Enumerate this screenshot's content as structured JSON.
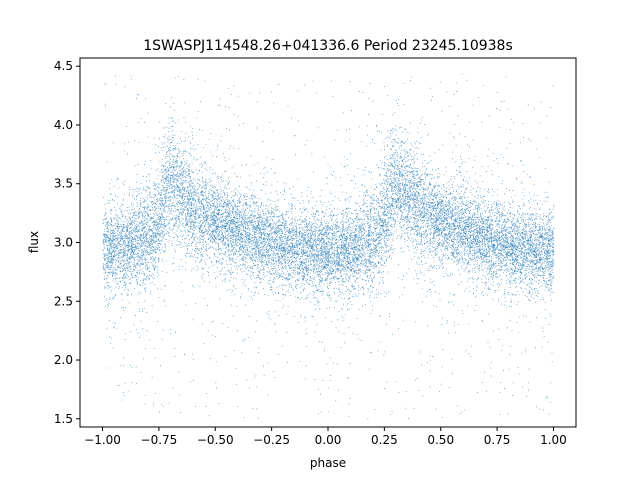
{
  "chart_data": {
    "type": "scatter",
    "title": "1SWASPJ114548.26+041336.6 Period 23245.10938s",
    "xlabel": "phase",
    "ylabel": "flux",
    "xlim": [
      -1.1,
      1.1
    ],
    "ylim": [
      1.43,
      4.57
    ],
    "x_ticks": [
      -1.0,
      -0.75,
      -0.5,
      -0.25,
      0.0,
      0.25,
      0.5,
      0.75,
      1.0
    ],
    "x_tick_labels": [
      "−1.00",
      "−0.75",
      "−0.50",
      "−0.25",
      "0.00",
      "0.25",
      "0.50",
      "0.75",
      "1.00"
    ],
    "y_ticks": [
      1.5,
      2.0,
      2.5,
      3.0,
      3.5,
      4.0,
      4.5
    ],
    "y_tick_labels": [
      "1.5",
      "2.0",
      "2.5",
      "3.0",
      "3.5",
      "4.0",
      "4.5"
    ],
    "grid": false,
    "marker_color": "#1f77b4",
    "series": [
      {
        "phase_range": [
          -1.0,
          1.0
        ],
        "n_points": 16000,
        "baseline_flux": 2.95,
        "peak_flux": 3.75,
        "peak_phase": [
          -0.7,
          0.3
        ],
        "flux_range": [
          1.5,
          4.45
        ],
        "x": [
          -1.0,
          -0.9,
          -0.8,
          -0.75,
          -0.7,
          -0.65,
          -0.6,
          -0.5,
          -0.4,
          -0.3,
          -0.2,
          -0.1,
          0.0,
          0.1,
          0.2,
          0.25,
          0.3,
          0.35,
          0.4,
          0.5,
          0.6,
          0.7,
          0.8,
          0.9,
          1.0
        ],
        "y": [
          2.93,
          2.97,
          3.06,
          3.2,
          3.55,
          3.42,
          3.28,
          3.18,
          3.1,
          3.02,
          2.98,
          2.93,
          2.92,
          2.94,
          3.04,
          3.2,
          3.55,
          3.42,
          3.3,
          3.18,
          3.1,
          3.02,
          2.98,
          2.95,
          2.93
        ]
      }
    ]
  }
}
